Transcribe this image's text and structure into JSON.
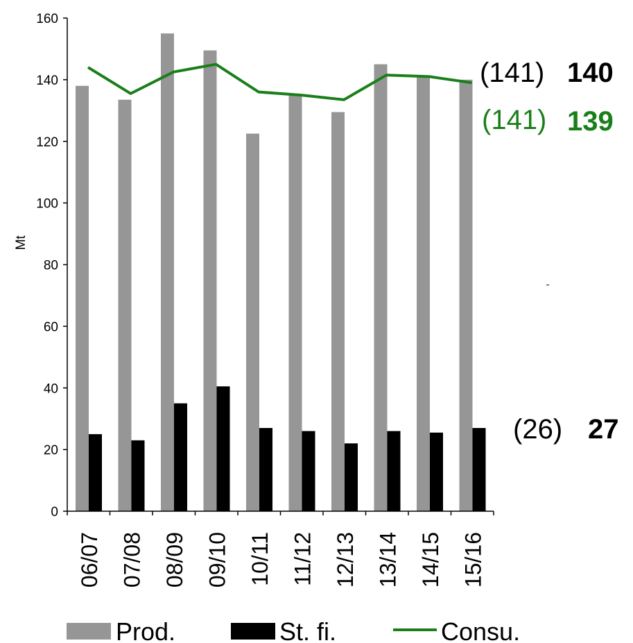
{
  "chart_data": {
    "type": "bar",
    "ylabel": "Mt",
    "ylim": [
      0,
      160
    ],
    "yticks": [
      0,
      20,
      40,
      60,
      80,
      100,
      120,
      140,
      160
    ],
    "grid": false,
    "legend_position": "bottom",
    "categories": [
      "06/07",
      "07/08",
      "08/09",
      "09/10",
      "10/11",
      "11/12",
      "12/13",
      "13/14",
      "14/15",
      "15/16"
    ],
    "series": [
      {
        "name": "Prod.",
        "kind": "bar",
        "color": "#969696",
        "values": [
          138,
          133.5,
          155,
          149.5,
          122.5,
          135,
          129.5,
          145,
          141,
          140
        ]
      },
      {
        "name": "St. fi.",
        "kind": "bar",
        "color": "#000000",
        "values": [
          25,
          23,
          35,
          40.5,
          27,
          26,
          22,
          26,
          25.5,
          27
        ]
      },
      {
        "name": "Consu.",
        "kind": "line",
        "color": "#1a7f1a",
        "values": [
          144,
          135.5,
          142.5,
          145,
          136,
          135,
          133.5,
          141.5,
          141,
          139
        ]
      }
    ],
    "annotations": [
      {
        "prev": "(141)",
        "value": "140",
        "color": "#000000"
      },
      {
        "prev": "(141)",
        "value": "139",
        "color": "#1a7f1a"
      },
      {
        "prev": "(26)",
        "value": "27",
        "color": "#000000"
      }
    ]
  }
}
